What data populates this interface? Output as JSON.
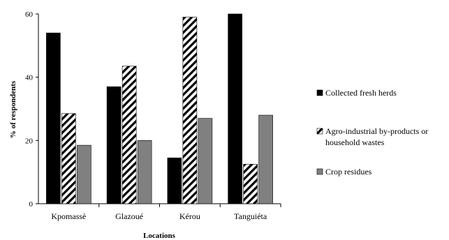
{
  "chart_data": {
    "type": "bar",
    "categories": [
      "Kpomassè",
      "Glazoué",
      "Kérou",
      "Tanguiéta"
    ],
    "series": [
      {
        "name": "Collected fresh herds",
        "values": [
          54,
          37,
          14.5,
          60
        ],
        "color": "#000000",
        "fill": "solid"
      },
      {
        "name": "Agro-industrial by-products or household wastes",
        "name_lines": [
          "Agro-industrial by-products or",
          "household wastes"
        ],
        "values": [
          28.5,
          43.5,
          59,
          12.5
        ],
        "color": "#000000",
        "fill": "diagonal-hatch"
      },
      {
        "name": "Crop residues",
        "values": [
          18.5,
          20,
          27,
          28
        ],
        "color": "#808080",
        "fill": "solid"
      }
    ],
    "xlabel": "Locations",
    "ylabel": "% of respondents",
    "ylim": [
      0,
      60
    ],
    "yticks": [
      0,
      20,
      40,
      60
    ],
    "grid": false,
    "legend": "right"
  }
}
